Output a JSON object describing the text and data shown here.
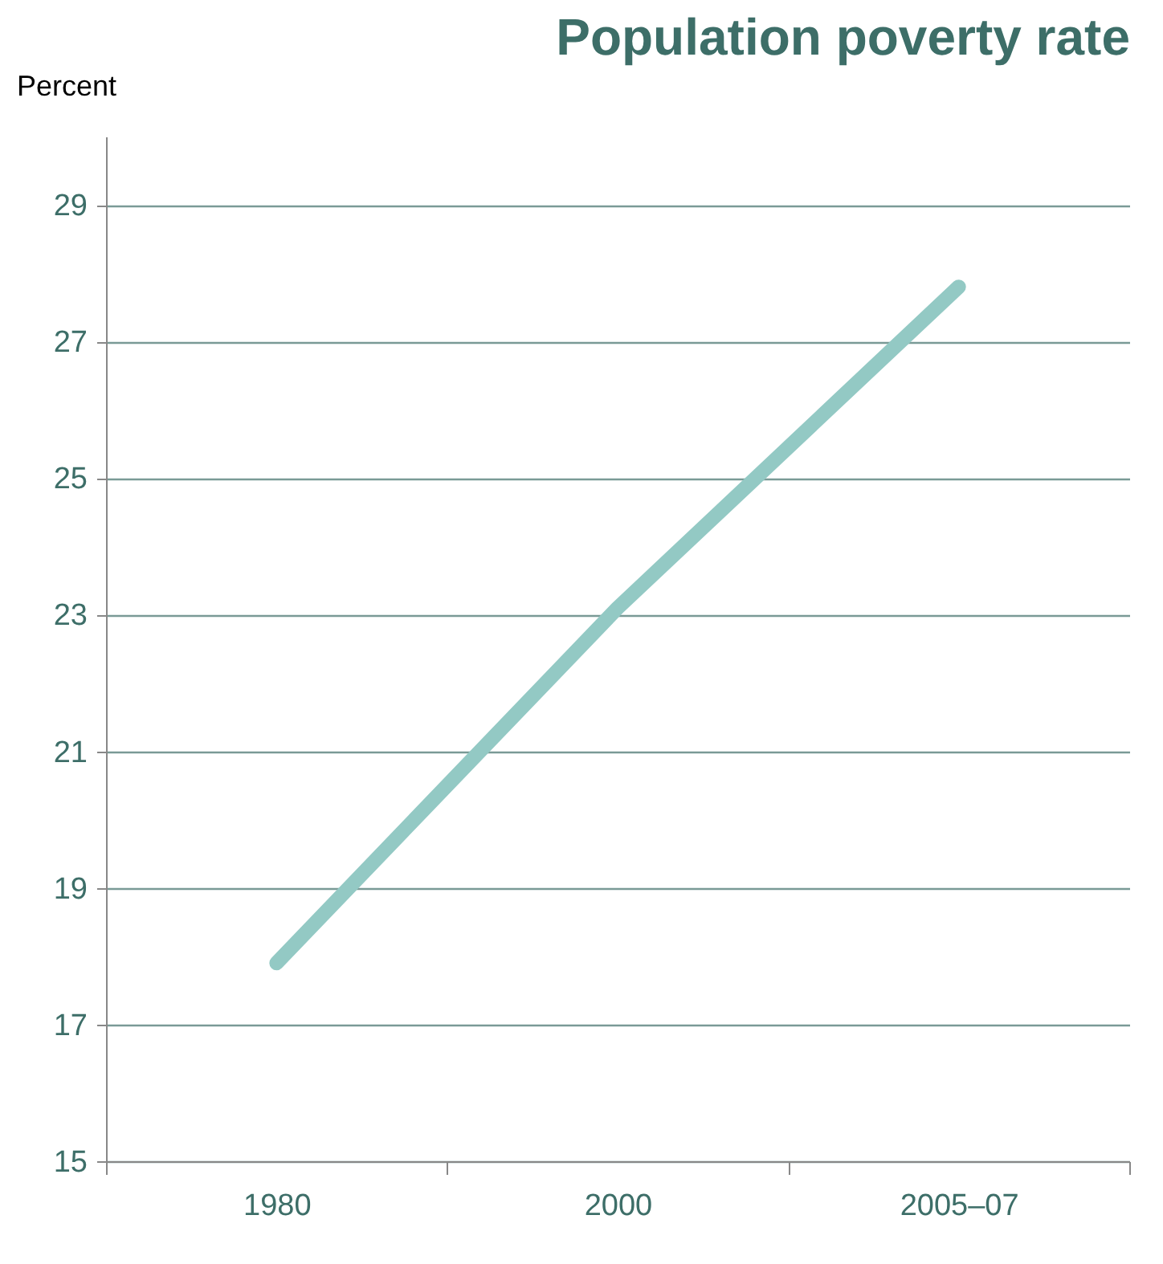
{
  "chart_data": {
    "type": "line",
    "title": "Population poverty rate",
    "ylabel": "Percent",
    "categories": [
      "1980",
      "2000",
      "2005–07"
    ],
    "series": [
      {
        "color": "#93c9c4",
        "values": [
          17.9,
          23.1,
          27.8
        ]
      }
    ],
    "ylim": [
      15,
      30
    ],
    "yticks": [
      15,
      17,
      19,
      21,
      23,
      25,
      27,
      29
    ],
    "grid": "y",
    "marker": "none",
    "line_style": "solid"
  }
}
